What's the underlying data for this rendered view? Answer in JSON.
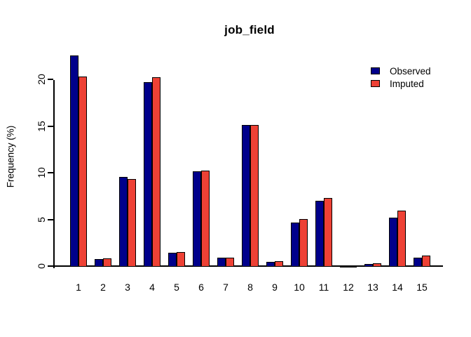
{
  "chart_data": {
    "type": "bar",
    "title": "job_field",
    "xlabel": "",
    "ylabel": "Frequency (%)",
    "categories": [
      "1",
      "2",
      "3",
      "4",
      "5",
      "6",
      "7",
      "8",
      "9",
      "10",
      "11",
      "12",
      "13",
      "14",
      "15"
    ],
    "series": [
      {
        "name": "Observed",
        "color": "#00008B",
        "values": [
          22.6,
          0.8,
          9.6,
          19.8,
          1.5,
          10.2,
          1.0,
          15.2,
          0.5,
          4.7,
          7.1,
          0.1,
          0.3,
          5.3,
          1.0
        ]
      },
      {
        "name": "Imputed",
        "color": "#EE4135",
        "values": [
          20.4,
          0.9,
          9.4,
          20.3,
          1.6,
          10.3,
          1.0,
          15.2,
          0.6,
          5.1,
          7.4,
          0.1,
          0.35,
          6.0,
          1.2
        ]
      }
    ],
    "ylim": [
      0,
      20
    ],
    "yticks": [
      "0",
      "5",
      "10",
      "15",
      "20"
    ],
    "grid": false,
    "legend_position": "top-right",
    "axis_color": "#000000",
    "bar_border_color": "#000000",
    "background_color": "#ffffff"
  }
}
